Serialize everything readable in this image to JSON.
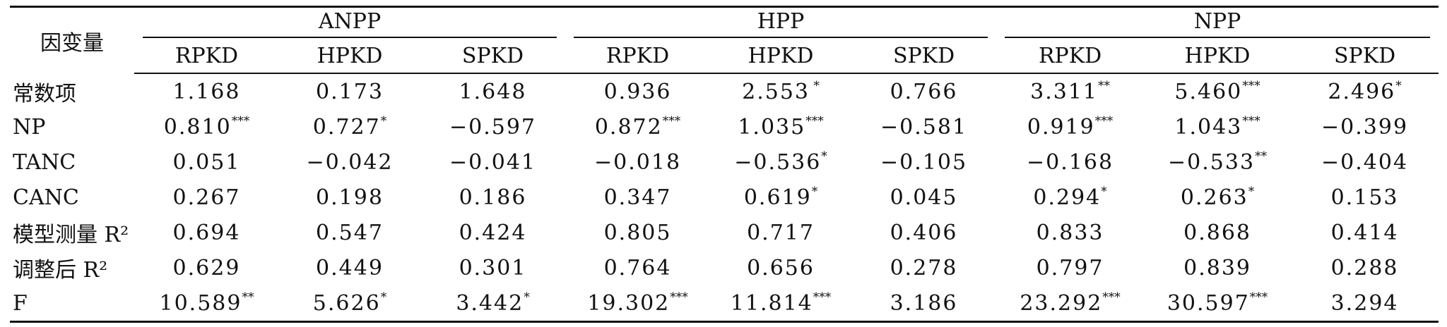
{
  "table": {
    "dep_var_label": "因变量",
    "groups": [
      "ANPP",
      "HPP",
      "NPP"
    ],
    "subcolumns": [
      "RPKD",
      "HPKD",
      "SPKD"
    ],
    "rows": [
      {
        "label": "常数项",
        "cells": [
          {
            "v": "1.168",
            "s": ""
          },
          {
            "v": "0.173",
            "s": ""
          },
          {
            "v": "1.648",
            "s": ""
          },
          {
            "v": "0.936",
            "s": ""
          },
          {
            "v": "2.553",
            "s": " *"
          },
          {
            "v": "0.766",
            "s": ""
          },
          {
            "v": "3.311",
            "s": "**"
          },
          {
            "v": "5.460",
            "s": "***"
          },
          {
            "v": "2.496",
            "s": "*"
          }
        ]
      },
      {
        "label": "NP",
        "cells": [
          {
            "v": "0.810",
            "s": "***"
          },
          {
            "v": "0.727",
            "s": "*"
          },
          {
            "v": "−0.597",
            "s": ""
          },
          {
            "v": "0.872",
            "s": "***"
          },
          {
            "v": "1.035",
            "s": "***"
          },
          {
            "v": "−0.581",
            "s": ""
          },
          {
            "v": "0.919",
            "s": "***"
          },
          {
            "v": "1.043",
            "s": "***"
          },
          {
            "v": "−0.399",
            "s": ""
          }
        ]
      },
      {
        "label": "TANC",
        "cells": [
          {
            "v": "0.051",
            "s": ""
          },
          {
            "v": "−0.042",
            "s": ""
          },
          {
            "v": "−0.041",
            "s": ""
          },
          {
            "v": "−0.018",
            "s": ""
          },
          {
            "v": "−0.536",
            "s": "*"
          },
          {
            "v": "−0.105",
            "s": ""
          },
          {
            "v": "−0.168",
            "s": ""
          },
          {
            "v": "−0.533",
            "s": "**"
          },
          {
            "v": "−0.404",
            "s": ""
          }
        ]
      },
      {
        "label": "CANC",
        "cells": [
          {
            "v": "0.267",
            "s": ""
          },
          {
            "v": "0.198",
            "s": ""
          },
          {
            "v": "0.186",
            "s": ""
          },
          {
            "v": "0.347",
            "s": ""
          },
          {
            "v": "0.619",
            "s": "*"
          },
          {
            "v": "0.045",
            "s": ""
          },
          {
            "v": "0.294",
            "s": "*"
          },
          {
            "v": "0.263",
            "s": "*"
          },
          {
            "v": "0.153",
            "s": ""
          }
        ]
      },
      {
        "label": "模型测量 R²",
        "cells": [
          {
            "v": "0.694",
            "s": ""
          },
          {
            "v": "0.547",
            "s": ""
          },
          {
            "v": "0.424",
            "s": ""
          },
          {
            "v": "0.805",
            "s": ""
          },
          {
            "v": "0.717",
            "s": ""
          },
          {
            "v": "0.406",
            "s": ""
          },
          {
            "v": "0.833",
            "s": ""
          },
          {
            "v": "0.868",
            "s": ""
          },
          {
            "v": "0.414",
            "s": ""
          }
        ]
      },
      {
        "label": "调整后 R²",
        "cells": [
          {
            "v": "0.629",
            "s": ""
          },
          {
            "v": "0.449",
            "s": ""
          },
          {
            "v": "0.301",
            "s": ""
          },
          {
            "v": "0.764",
            "s": ""
          },
          {
            "v": "0.656",
            "s": ""
          },
          {
            "v": "0.278",
            "s": ""
          },
          {
            "v": "0.797",
            "s": ""
          },
          {
            "v": "0.839",
            "s": ""
          },
          {
            "v": "0.288",
            "s": ""
          }
        ]
      },
      {
        "label": "F",
        "cells": [
          {
            "v": "10.589",
            "s": "**"
          },
          {
            "v": "5.626",
            "s": "*"
          },
          {
            "v": "3.442",
            "s": "*"
          },
          {
            "v": "19.302",
            "s": "***"
          },
          {
            "v": "11.814",
            "s": "***"
          },
          {
            "v": "3.186",
            "s": ""
          },
          {
            "v": "23.292",
            "s": "***"
          },
          {
            "v": "30.597",
            "s": "***"
          },
          {
            "v": "3.294",
            "s": ""
          }
        ]
      }
    ]
  }
}
